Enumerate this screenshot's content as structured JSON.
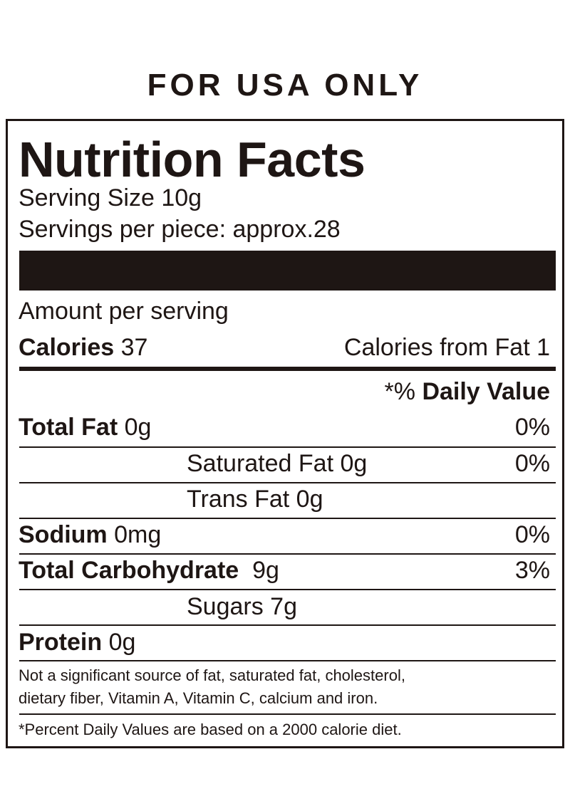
{
  "header": "FOR USA ONLY",
  "label": {
    "title": "Nutrition Facts",
    "serving_size": "Serving Size 10g",
    "servings_per": "Servings per piece: approx.28",
    "amount_per_serving": "Amount per serving",
    "calories_label": "Calories",
    "calories_value": "37",
    "calories_from_fat": "Calories from Fat 1",
    "dv_prefix": "*%",
    "dv_label": "Daily Value",
    "rows": [
      {
        "label": "Total Fat",
        "value": "0g",
        "dv": "0%"
      },
      {
        "label": "Saturated Fat 0g",
        "dv": "0%"
      },
      {
        "label": "Trans Fat 0g"
      },
      {
        "label": "Sodium",
        "value": "0mg",
        "dv": "0%"
      },
      {
        "label": "Total Carbohydrate",
        "value": "9g",
        "dv": "3%"
      },
      {
        "label": "Sugars 7g"
      },
      {
        "label": "Protein",
        "value": "0g"
      }
    ],
    "note1": "Not a significant source of fat, saturated fat, cholesterol,",
    "note2": "dietary fiber, Vitamin A, Vitamin C, calcium and iron.",
    "footnote": "*Percent Daily Values are based on a 2000 calorie diet."
  }
}
